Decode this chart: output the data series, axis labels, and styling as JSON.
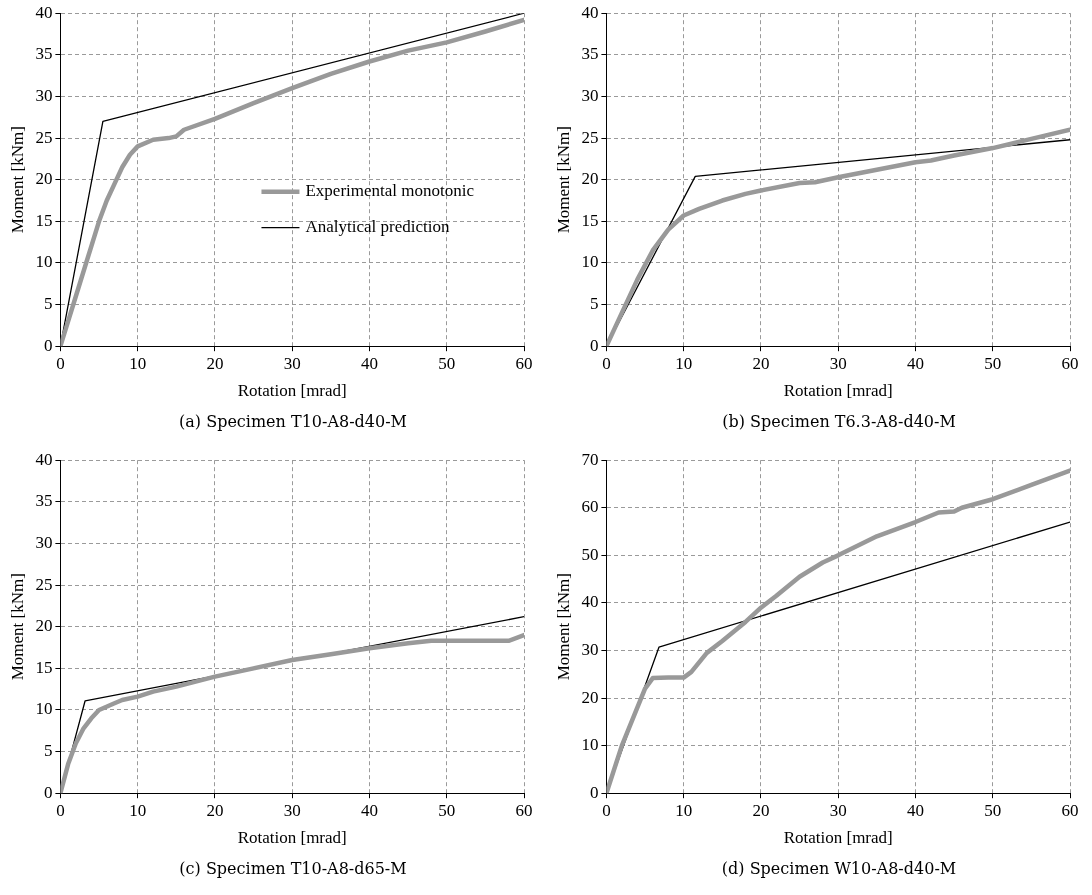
{
  "chart_data": [
    {
      "type": "line",
      "title": "(a) Specimen T10-A8-d40-M",
      "xlabel": "Rotation [mrad]",
      "ylabel": "Moment [kNm]",
      "xlim": [
        0,
        60
      ],
      "ylim": [
        0,
        40
      ],
      "xticks": [
        0,
        10,
        20,
        30,
        40,
        50,
        60
      ],
      "yticks": [
        0,
        5,
        10,
        15,
        20,
        25,
        30,
        35,
        40
      ],
      "grid": true,
      "legend": "center right",
      "marker": "none",
      "line_style": "solid",
      "series": [
        {
          "name": "Experimental monotonic",
          "color": "#999999",
          "x": [
            0,
            2,
            4,
            5,
            6,
            7,
            8,
            9,
            10,
            12,
            14,
            15,
            16,
            20,
            25,
            30,
            35,
            40,
            45,
            50,
            55,
            60
          ],
          "values": [
            0,
            6,
            12,
            15,
            17.5,
            19.5,
            21.5,
            23,
            24,
            24.8,
            25,
            25.2,
            26,
            27.3,
            29.2,
            31,
            32.7,
            34.2,
            35.5,
            36.5,
            37.8,
            39.2
          ]
        },
        {
          "name": "Analytical prediction",
          "color": "#000000",
          "x": [
            0,
            5.5,
            60
          ],
          "values": [
            0,
            27,
            40
          ]
        }
      ]
    },
    {
      "type": "line",
      "title": "(b) Specimen T6.3-A8-d40-M",
      "xlabel": "Rotation [mrad]",
      "ylabel": "Moment [kNm]",
      "xlim": [
        0,
        60
      ],
      "ylim": [
        0,
        40
      ],
      "xticks": [
        0,
        10,
        20,
        30,
        40,
        50,
        60
      ],
      "yticks": [
        0,
        5,
        10,
        15,
        20,
        25,
        30,
        35,
        40
      ],
      "grid": true,
      "marker": "none",
      "line_style": "solid",
      "series": [
        {
          "color": "#999999",
          "x": [
            0,
            2,
            4,
            6,
            8,
            10,
            12,
            15,
            18,
            20,
            25,
            27,
            30,
            35,
            40,
            42,
            45,
            50,
            55,
            60
          ],
          "values": [
            0,
            4,
            8,
            11.5,
            14,
            15.7,
            16.5,
            17.5,
            18.3,
            18.7,
            19.6,
            19.7,
            20.3,
            21.2,
            22.1,
            22.3,
            22.9,
            23.8,
            24.9,
            26
          ]
        },
        {
          "color": "#000000",
          "x": [
            0,
            11.5,
            60
          ],
          "values": [
            0,
            20.4,
            24.8
          ]
        }
      ]
    },
    {
      "type": "line",
      "title": "(c) Specimen T10-A8-d65-M",
      "xlabel": "Rotation [mrad]",
      "ylabel": "Moment [kNm]",
      "xlim": [
        0,
        60
      ],
      "ylim": [
        0,
        40
      ],
      "xticks": [
        0,
        10,
        20,
        30,
        40,
        50,
        60
      ],
      "yticks": [
        0,
        5,
        10,
        15,
        20,
        25,
        30,
        35,
        40
      ],
      "grid": true,
      "marker": "none",
      "line_style": "solid",
      "series": [
        {
          "color": "#999999",
          "x": [
            0,
            1,
            2,
            3,
            4,
            5,
            7,
            8,
            10,
            12,
            15,
            20,
            25,
            30,
            35,
            40,
            45,
            48,
            50,
            55,
            58,
            60
          ],
          "values": [
            0,
            3.5,
            6,
            7.8,
            9,
            10,
            10.8,
            11.2,
            11.6,
            12.2,
            12.8,
            14,
            15,
            16,
            16.7,
            17.4,
            18,
            18.3,
            18.3,
            18.3,
            18.3,
            19
          ]
        },
        {
          "color": "#000000",
          "x": [
            0,
            3.2,
            60
          ],
          "values": [
            0,
            11.1,
            21.2
          ]
        }
      ]
    },
    {
      "type": "line",
      "title": "(d) Specimen W10-A8-d40-M",
      "xlabel": "Rotation [mrad]",
      "ylabel": "Moment [kNm]",
      "xlim": [
        0,
        60
      ],
      "ylim": [
        0,
        70
      ],
      "xticks": [
        0,
        10,
        20,
        30,
        40,
        50,
        60
      ],
      "yticks": [
        0,
        10,
        20,
        30,
        40,
        50,
        60,
        70
      ],
      "grid": true,
      "marker": "none",
      "line_style": "solid",
      "series": [
        {
          "color": "#999999",
          "x": [
            0,
            2,
            4,
            5,
            6,
            8,
            10,
            11,
            13,
            15,
            18,
            20,
            22,
            25,
            28,
            30,
            35,
            40,
            43,
            45,
            46,
            50,
            55,
            60
          ],
          "values": [
            0,
            10,
            18,
            22,
            24.2,
            24.3,
            24.3,
            25.5,
            29.5,
            32,
            36,
            39,
            41.5,
            45.5,
            48.5,
            50,
            54,
            57,
            59,
            59.2,
            60,
            61.8,
            64.8,
            67.8
          ]
        },
        {
          "color": "#000000",
          "x": [
            0,
            6.8,
            60
          ],
          "values": [
            0,
            30.7,
            57
          ]
        }
      ]
    }
  ]
}
